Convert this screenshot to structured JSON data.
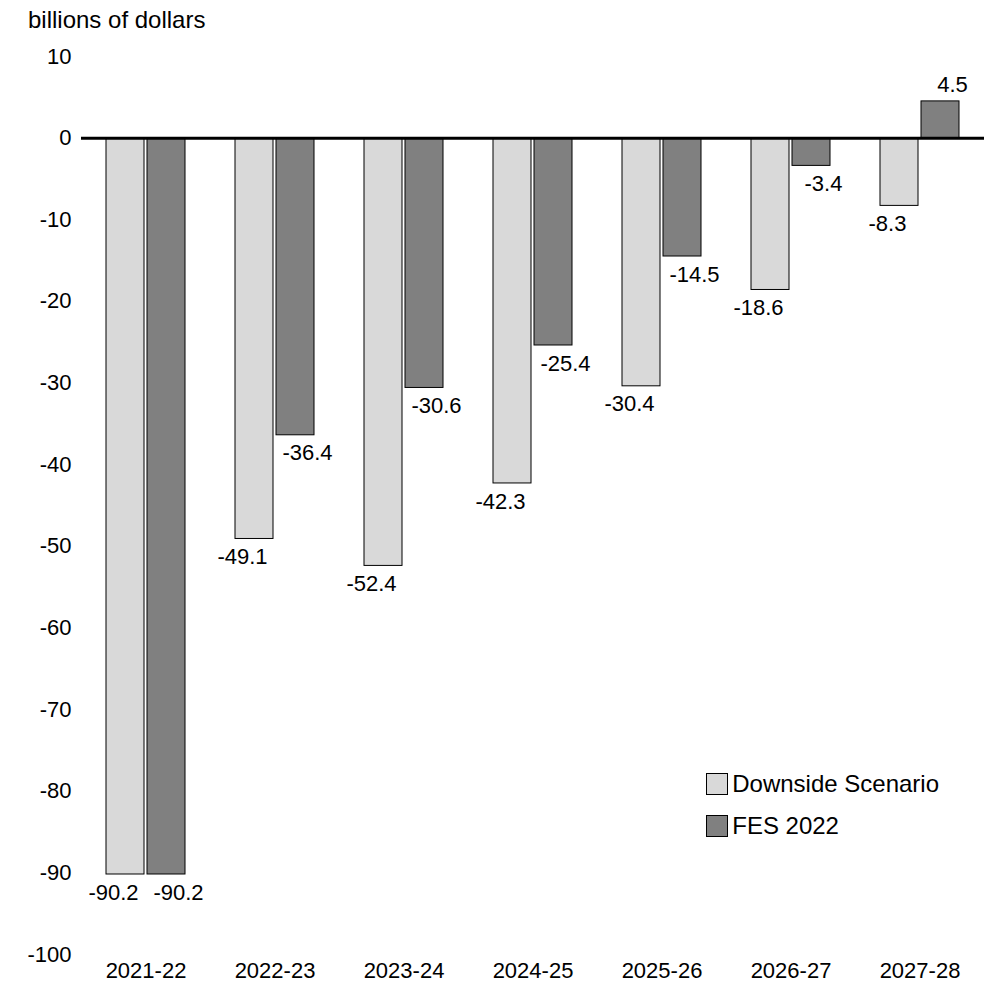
{
  "chart_data": {
    "type": "bar",
    "y_label": "billions of dollars",
    "categories": [
      "2021-22",
      "2022-23",
      "2023-24",
      "2024-25",
      "2025-26",
      "2026-27",
      "2027-28"
    ],
    "series": [
      {
        "name": "Downside Scenario",
        "color": "#d9d9d9",
        "values": [
          -90.2,
          -49.1,
          -52.4,
          -42.3,
          -30.4,
          -18.6,
          -8.3
        ]
      },
      {
        "name": "FES 2022",
        "color": "#808080",
        "values": [
          -90.2,
          -36.4,
          -30.6,
          -25.4,
          -14.5,
          -3.4,
          4.5
        ]
      }
    ],
    "ylim": [
      -100,
      10
    ],
    "yticks": [
      -100,
      -90,
      -80,
      -70,
      -60,
      -50,
      -40,
      -30,
      -20,
      -10,
      0,
      10
    ],
    "grid": false,
    "legend": "bottom-right",
    "data_labels": true
  }
}
